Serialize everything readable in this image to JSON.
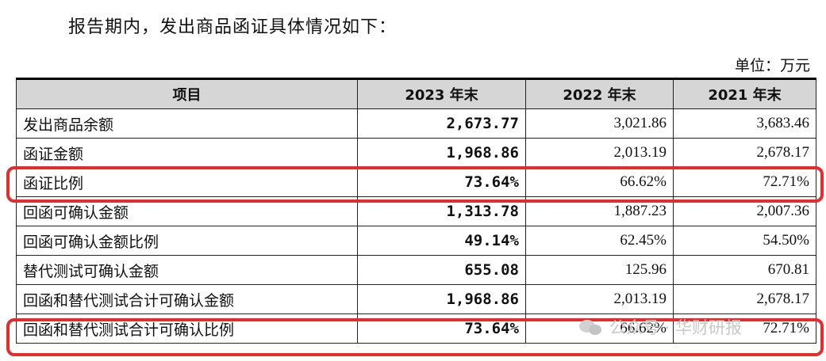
{
  "intro": "报告期内，发出商品函证具体情况如下：",
  "unit": "单位：万元",
  "table": {
    "headers": [
      "项目",
      "2023 年末",
      "2022 年末",
      "2021 年末"
    ],
    "rows": [
      {
        "item": "发出商品余额",
        "y2023": "2,673.77",
        "y2022": "3,021.86",
        "y2021": "3,683.46"
      },
      {
        "item": "函证金额",
        "y2023": "1,968.86",
        "y2022": "2,013.19",
        "y2021": "2,678.17"
      },
      {
        "item": "函证比例",
        "y2023": "73.64%",
        "y2022": "66.62%",
        "y2021": "72.71%"
      },
      {
        "item": "回函可确认金额",
        "y2023": "1,313.78",
        "y2022": "1,887.23",
        "y2021": "2,007.36"
      },
      {
        "item": "回函可确认金额比例",
        "y2023": "49.14%",
        "y2022": "62.45%",
        "y2021": "54.50%"
      },
      {
        "item": "替代测试可确认金额",
        "y2023": "655.08",
        "y2022": "125.96",
        "y2021": "670.81"
      },
      {
        "item": "回函和替代测试合计可确认金额",
        "y2023": "1,968.86",
        "y2022": "2,013.19",
        "y2021": "2,678.17"
      },
      {
        "item": "回函和替代测试合计可确认比例",
        "y2023": "73.64%",
        "y2022": "66.62%",
        "y2021": "72.71%"
      }
    ]
  },
  "highlight_color": "#e52c2c",
  "watermark": {
    "icon": "wechat-logo-icon",
    "text": "公众号 · 华财研报"
  }
}
